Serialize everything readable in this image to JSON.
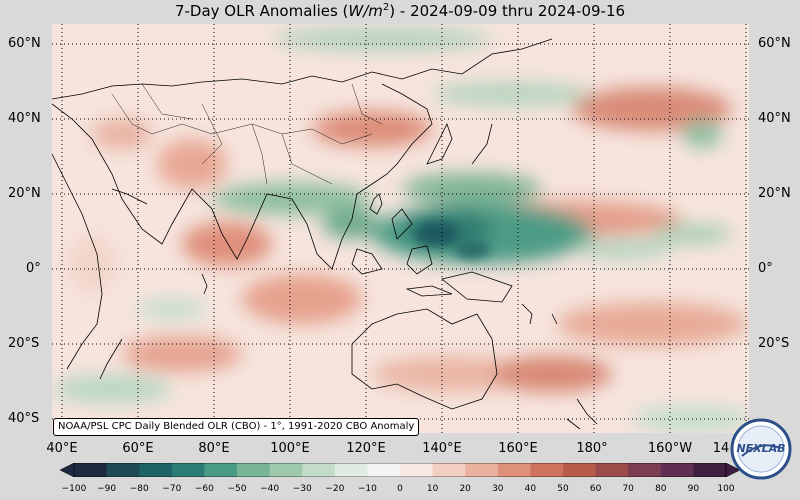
{
  "title": {
    "prefix": "7-Day OLR Anomalies (",
    "unit_base": "W/m",
    "unit_exp": "2",
    "suffix": ") - 2024-09-09 thru 2024-09-16"
  },
  "map": {
    "lat_labels_left": [
      "60°N",
      "40°N",
      "20°N",
      "0°",
      "20°S",
      "40°S"
    ],
    "lat_labels_right": [
      "60°N",
      "40°N",
      "20°N",
      "0°",
      "20°S",
      "40°S"
    ],
    "lon_labels": [
      "40°E",
      "60°E",
      "80°E",
      "100°E",
      "120°E",
      "140°E",
      "160°E",
      "180°",
      "160°W",
      "14"
    ],
    "credit": "NOAA/PSL CPC Daily Blended OLR (CBO) - 1°, 1991-2020 CBO Anomaly",
    "gridlines": "dotted",
    "colors": {
      "negative_max": "#1f5050",
      "negative_mid": "#5fa889",
      "negative_low": "#cfe3d4",
      "neutral": "#f8efec",
      "positive_low": "#f2c8ba",
      "positive_mid": "#d9806b",
      "positive_max": "#3a1a33",
      "land_outline": "#000000"
    }
  },
  "colorbar": {
    "ticks": [
      "−100",
      "−90",
      "−80",
      "−70",
      "−60",
      "−50",
      "−40",
      "−30",
      "−20",
      "−10",
      "0",
      "10",
      "20",
      "30",
      "40",
      "50",
      "60",
      "70",
      "80",
      "90",
      "100"
    ],
    "colors": [
      "#1d2a3f",
      "#1e4a55",
      "#1f6366",
      "#2a7c74",
      "#4a9b86",
      "#78b498",
      "#9fc9ad",
      "#c2dcc8",
      "#dfece2",
      "#f2f4f1",
      "#f7e8e2",
      "#f2cfc2",
      "#eab19f",
      "#df917c",
      "#cf725c",
      "#b85b4a",
      "#9a4b4a",
      "#7c3d52",
      "#5f2e52",
      "#3f1f3f"
    ]
  },
  "logo": {
    "text": "NEXLAB"
  }
}
